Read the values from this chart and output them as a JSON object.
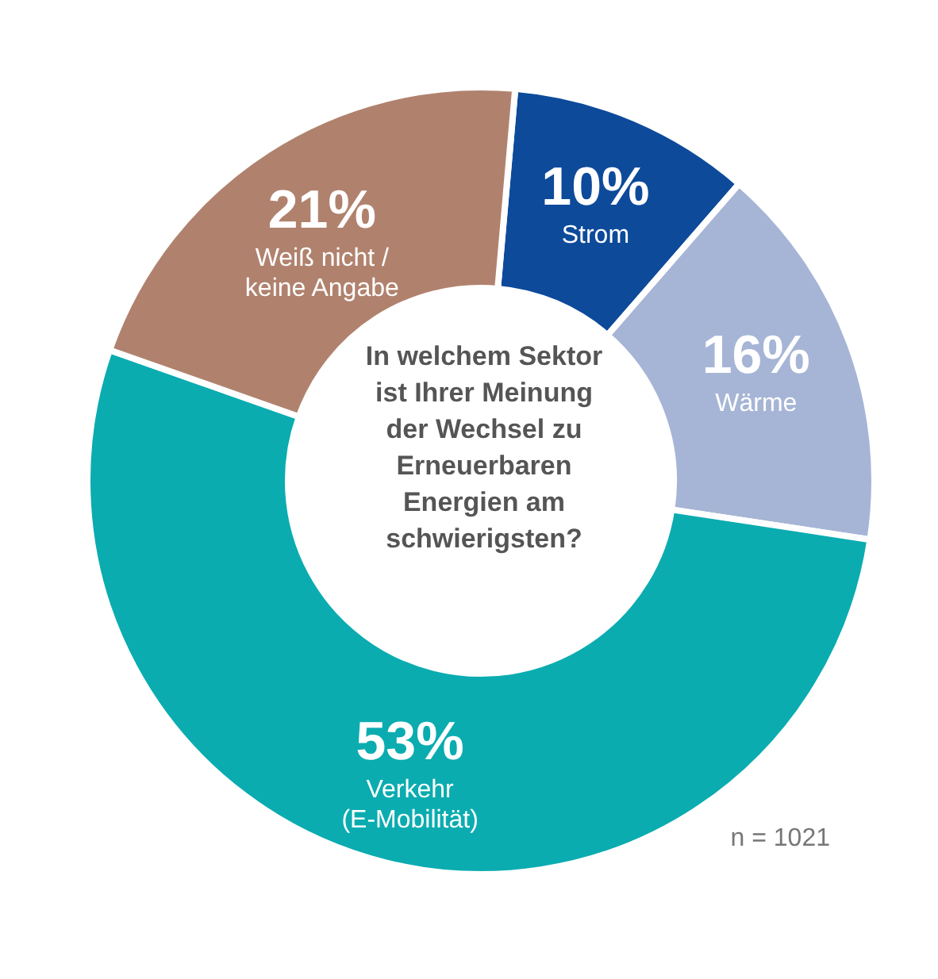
{
  "chart_data": {
    "type": "donut",
    "title": "In welchem Sektor ist Ihrer Meinung der Wechsel zu Erneuerbaren Energien am schwierigsten?",
    "categories": [
      "Strom",
      "Wärme",
      "Verkehr\n(E-Mobilität)",
      "Weiß nicht /\nkeine Angabe"
    ],
    "values": [
      10,
      16,
      53,
      21
    ],
    "colors": [
      "#0d4a9a",
      "#a6b5d6",
      "#0aacb0",
      "#b0826e"
    ],
    "value_labels": [
      "10%",
      "16%",
      "53%",
      "21%"
    ],
    "legend": false,
    "annotations": [
      "n = 1021"
    ]
  }
}
